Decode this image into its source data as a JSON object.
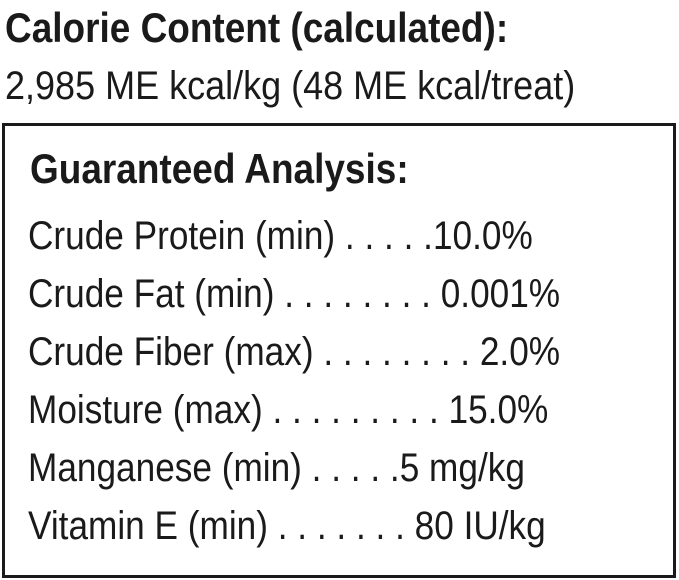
{
  "calorie": {
    "title": "Calorie Content (calculated):",
    "value": "2,985 ME kcal/kg (48 ME kcal/treat)"
  },
  "analysis": {
    "heading": "Guaranteed Analysis:",
    "rows": [
      {
        "label": "Crude Protein (min)",
        "dots": " . . . . .",
        "value": "10.0%"
      },
      {
        "label": "Crude Fat (min)",
        "dots": " . . . . . . . . ",
        "value": "0.001%"
      },
      {
        "label": "Crude Fiber (max)",
        "dots": " . . . . . . . . ",
        "value": "2.0%"
      },
      {
        "label": "Moisture (max)",
        "dots": " . . . . . . . . . ",
        "value": "15.0%"
      },
      {
        "label": "Manganese (min)",
        "dots": " . . . . .",
        "value": "5 mg/kg"
      },
      {
        "label": "Vitamin E (min)",
        "dots": " . . . . . . . ",
        "value": "80 IU/kg"
      }
    ]
  }
}
